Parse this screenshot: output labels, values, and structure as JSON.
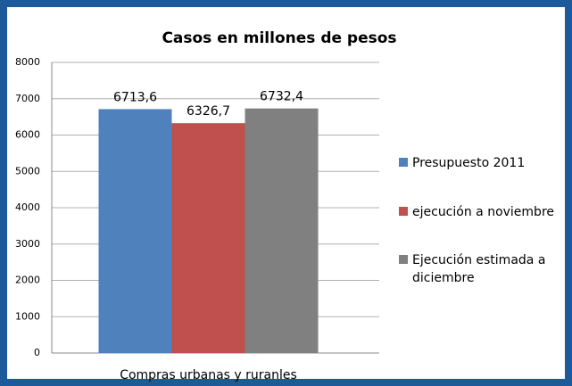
{
  "chart_data": {
    "type": "bar",
    "title": "Casos en millones de pesos",
    "categories": [
      "Compras urbanas y ruranles"
    ],
    "series": [
      {
        "name": "Presupuesto 2011",
        "color": "#4f81bd",
        "values": [
          6713.6
        ],
        "value_labels": [
          "6713,6"
        ]
      },
      {
        "name": "ejecución a noviembre",
        "color": "#c0504d",
        "values": [
          6326.7
        ],
        "value_labels": [
          "6326,7"
        ]
      },
      {
        "name": "Ejecución estimada a diciembre",
        "color": "#808080",
        "values": [
          6732.4
        ],
        "value_labels": [
          "6732,4"
        ]
      }
    ],
    "ylim": [
      0,
      8000
    ],
    "yticks": [
      0,
      1000,
      2000,
      3000,
      4000,
      5000,
      6000,
      7000,
      8000
    ],
    "grid": true,
    "legend": "right"
  }
}
